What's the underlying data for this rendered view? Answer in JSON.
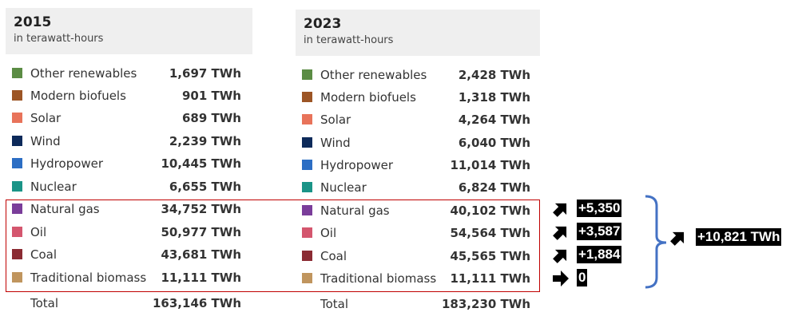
{
  "chart_data": {
    "type": "table",
    "unit_label": "in terawatt-hours",
    "panels": [
      {
        "year": "2015",
        "rows": [
          {
            "label": "Other renewables",
            "value": "1,697 TWh",
            "color": "#5b8c44"
          },
          {
            "label": "Modern biofuels",
            "value": "901 TWh",
            "color": "#9c5525"
          },
          {
            "label": "Solar",
            "value": "689 TWh",
            "color": "#e8735a"
          },
          {
            "label": "Wind",
            "value": "2,239 TWh",
            "color": "#0d2a5a"
          },
          {
            "label": "Hydropower",
            "value": "10,445 TWh",
            "color": "#2c6ec4"
          },
          {
            "label": "Nuclear",
            "value": "6,655 TWh",
            "color": "#1a9487"
          },
          {
            "label": "Natural gas",
            "value": "34,752 TWh",
            "color": "#7a3d9a"
          },
          {
            "label": "Oil",
            "value": "50,977 TWh",
            "color": "#d4566e"
          },
          {
            "label": "Coal",
            "value": "43,681 TWh",
            "color": "#8b2b33"
          },
          {
            "label": "Traditional biomass",
            "value": "11,111 TWh",
            "color": "#c0955e"
          }
        ],
        "total": {
          "label": "Total",
          "value": "163,146 TWh"
        }
      },
      {
        "year": "2023",
        "rows": [
          {
            "label": "Other renewables",
            "value": "2,428 TWh",
            "color": "#5b8c44"
          },
          {
            "label": "Modern biofuels",
            "value": "1,318 TWh",
            "color": "#9c5525"
          },
          {
            "label": "Solar",
            "value": "4,264 TWh",
            "color": "#e8735a"
          },
          {
            "label": "Wind",
            "value": "6,040 TWh",
            "color": "#0d2a5a"
          },
          {
            "label": "Hydropower",
            "value": "11,014 TWh",
            "color": "#2c6ec4"
          },
          {
            "label": "Nuclear",
            "value": "6,824 TWh",
            "color": "#1a9487"
          },
          {
            "label": "Natural gas",
            "value": "40,102 TWh",
            "color": "#7a3d9a"
          },
          {
            "label": "Oil",
            "value": "54,564 TWh",
            "color": "#d4566e"
          },
          {
            "label": "Coal",
            "value": "45,565 TWh",
            "color": "#8b2b33"
          },
          {
            "label": "Traditional biomass",
            "value": "11,111 TWh",
            "color": "#c0955e"
          }
        ],
        "total": {
          "label": "Total",
          "value": "183,230 TWh"
        }
      }
    ],
    "annotations": {
      "differences": [
        "+5,350",
        "+3,587",
        "+1,884",
        "0"
      ],
      "sum": "+10,821 TWh"
    },
    "highlight_color": "#c00000",
    "bracket_color": "#4472c4"
  }
}
